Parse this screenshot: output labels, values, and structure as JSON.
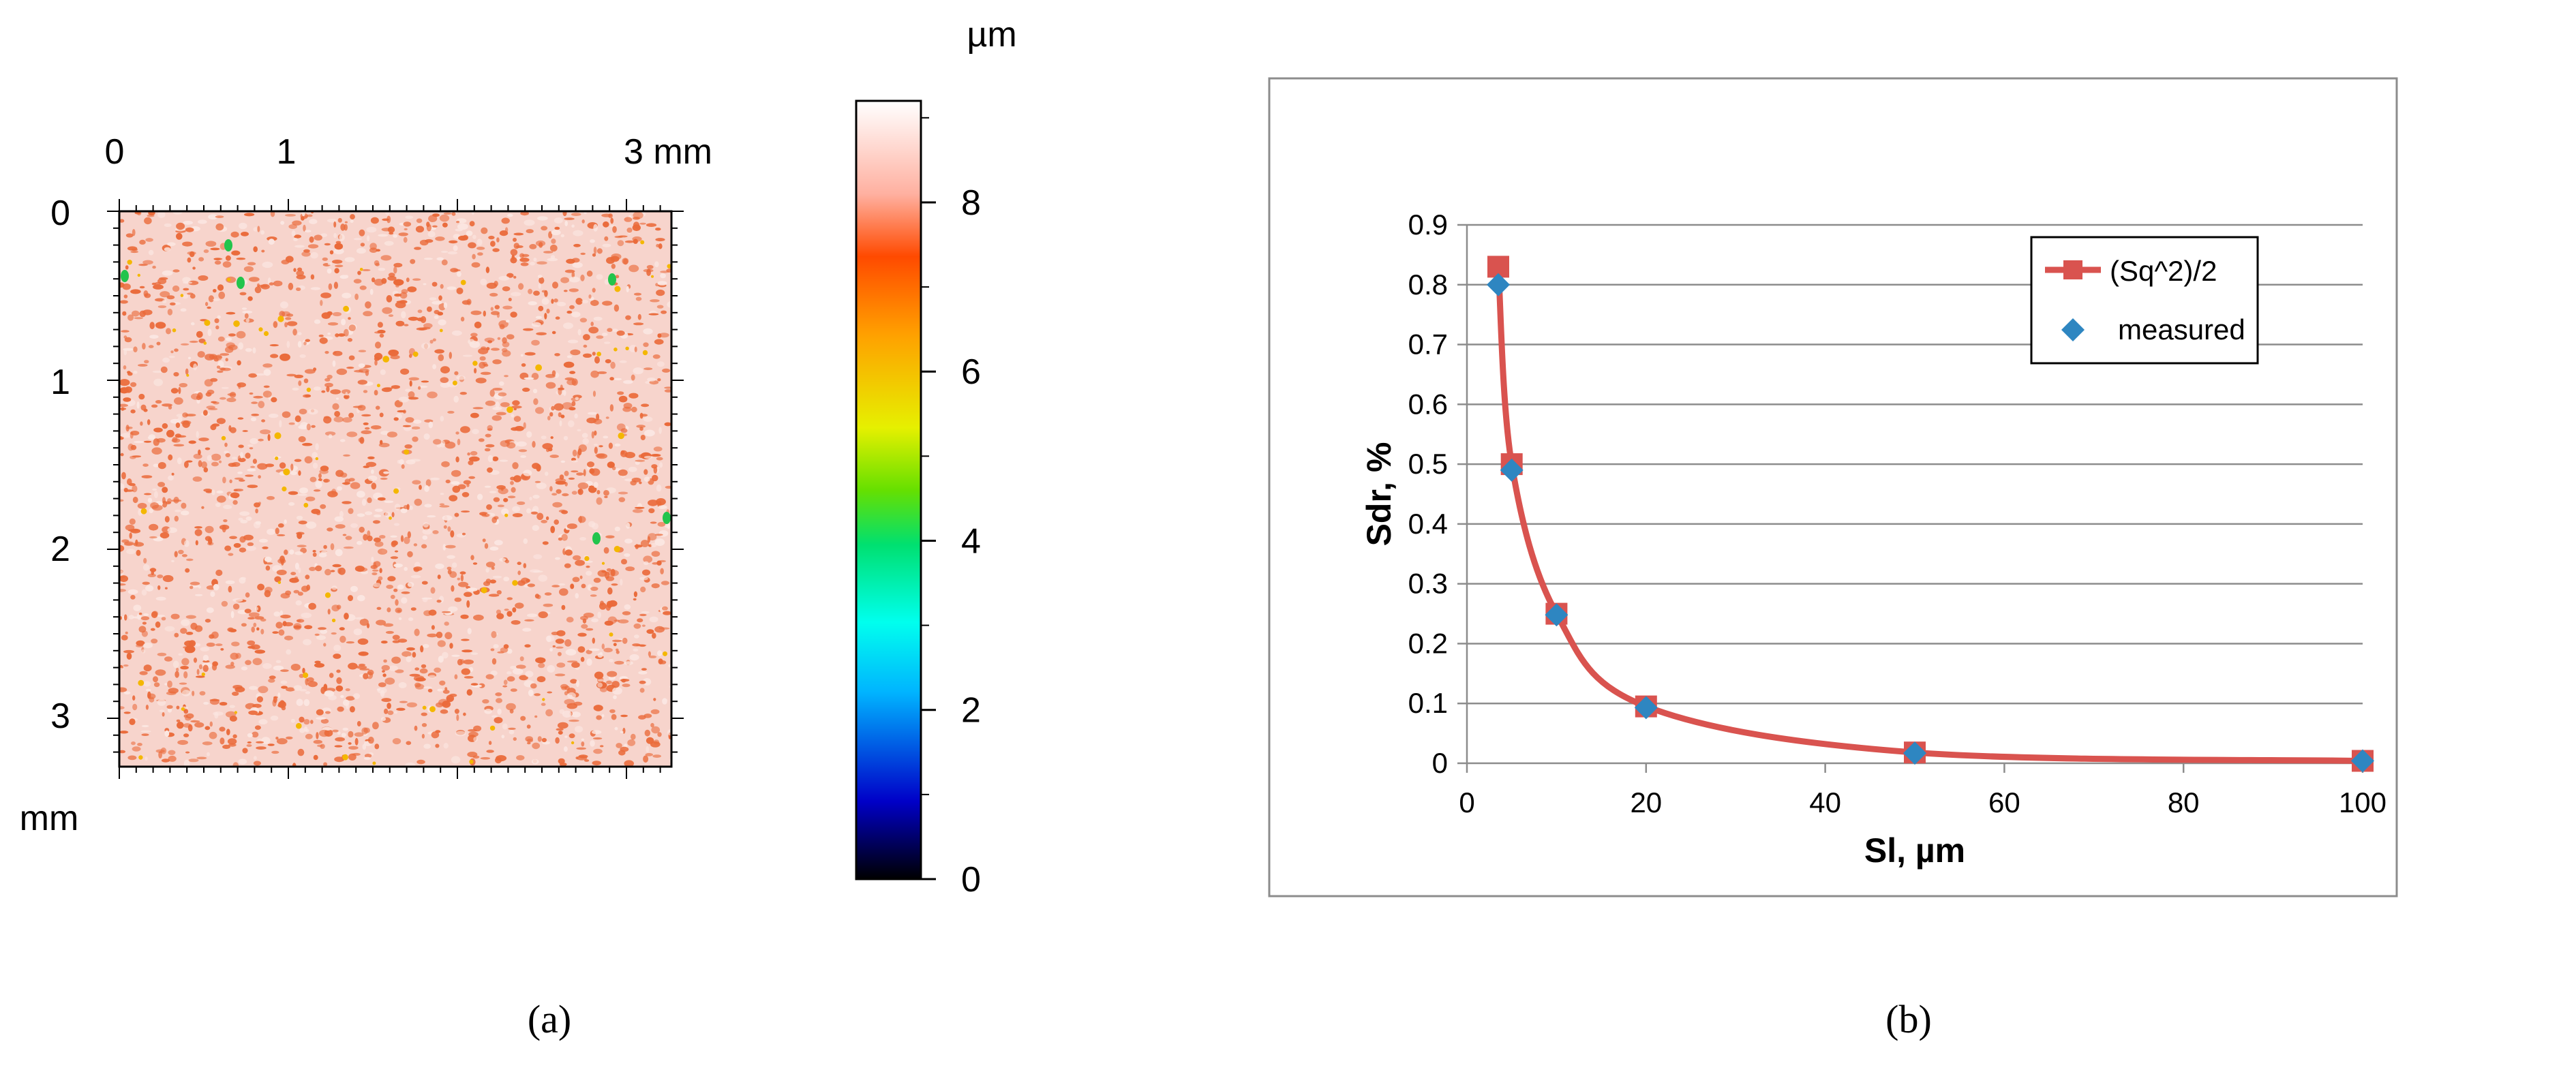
{
  "panel_a": {
    "caption": "(a)",
    "x_ticks": [
      "0",
      "1",
      "3 mm"
    ],
    "y_ticks": [
      "0",
      "1",
      "2",
      "3"
    ],
    "y_unit": "mm",
    "colorbar_unit": "µm",
    "colorbar_ticks": [
      "0",
      "2",
      "4",
      "6",
      "8"
    ],
    "map_colors": {
      "base": "#f7d4cc",
      "dense": "#ea6a3a",
      "light": "#fbe7e2",
      "hotspot": "#f4b700",
      "outlier": "#22c44c"
    }
  },
  "panel_b": {
    "caption": "(b)"
  },
  "chart_data": [
    {
      "type": "heatmap",
      "x_ticks": [
        "0",
        "1",
        "3 mm"
      ],
      "y_ticks": [
        "0",
        "1",
        "2",
        "3"
      ],
      "ylabel": "mm",
      "colorbar": {
        "label": "µm",
        "range": [
          0,
          9.2
        ],
        "ticks": [
          0,
          2,
          4,
          6,
          8
        ]
      }
    },
    {
      "type": "line",
      "xlabel": "Sl, µm",
      "ylabel": "Sdr, %",
      "xlim": [
        0,
        100
      ],
      "ylim": [
        0,
        0.9
      ],
      "x_ticks": [
        0,
        20,
        40,
        60,
        80,
        100
      ],
      "y_ticks": [
        0,
        0.1,
        0.2,
        0.3,
        0.4,
        0.5,
        0.6,
        0.7,
        0.8,
        0.9
      ],
      "grid": true,
      "legend": "top-right",
      "series": [
        {
          "name": "(Sq^2)/2",
          "color": "#d9534f",
          "marker": "square",
          "x": [
            3.5,
            5,
            10,
            20,
            50,
            100
          ],
          "y": [
            0.83,
            0.5,
            0.25,
            0.095,
            0.018,
            0.004
          ]
        },
        {
          "name": "measured",
          "color": "#2e86c1",
          "marker": "diamond",
          "x": [
            3.5,
            5,
            10,
            20,
            50,
            100
          ],
          "y": [
            0.8,
            0.49,
            0.248,
            0.093,
            0.017,
            0.004
          ]
        }
      ]
    }
  ]
}
